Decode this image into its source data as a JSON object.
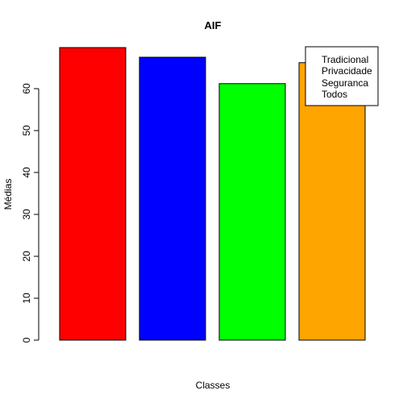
{
  "chart_data": {
    "type": "bar",
    "title": "AIF",
    "xlabel": "Classes",
    "ylabel": "Médias",
    "categories": [
      "Tradicional",
      "Privacidade",
      "Seguranca",
      "Todos"
    ],
    "values": [
      69.8,
      67.5,
      61.2,
      66.2
    ],
    "colors": [
      "#ff0000",
      "#0000ff",
      "#00ff00",
      "#ffa500"
    ],
    "ylim": [
      0,
      70
    ],
    "yticks": [
      0,
      10,
      20,
      30,
      40,
      50,
      60
    ],
    "ytick_labels": [
      "0",
      "10",
      "20",
      "30",
      "40",
      "50",
      "60"
    ],
    "grid": false,
    "legend": {
      "position": "top-right",
      "entries": [
        "Tradicional",
        "Privacidade",
        "Seguranca",
        "Todos"
      ]
    }
  }
}
